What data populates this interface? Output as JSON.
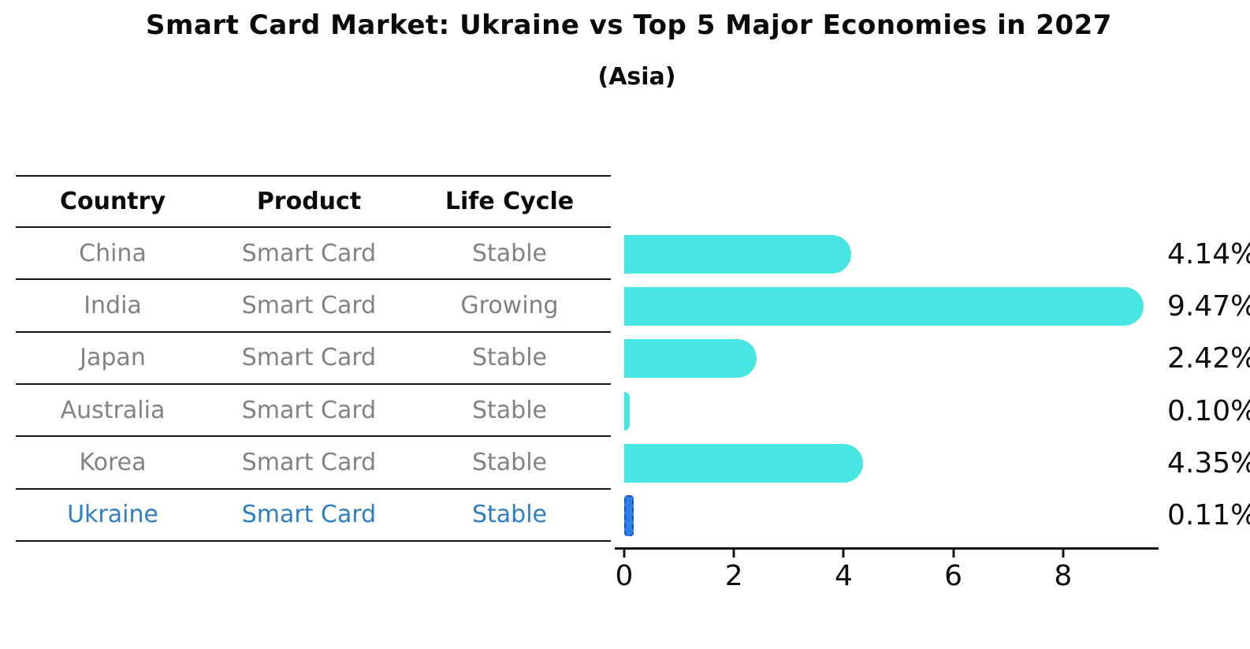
{
  "title": "Smart Card Market: Ukraine vs Top 5 Major Economies in 2027",
  "subtitle": "(Asia)",
  "table": {
    "headers": [
      "Country",
      "Product",
      "Life Cycle"
    ],
    "rows": [
      {
        "country": "China",
        "product": "Smart Card",
        "life_cycle": "Stable",
        "highlight": false
      },
      {
        "country": "India",
        "product": "Smart Card",
        "life_cycle": "Growing",
        "highlight": false
      },
      {
        "country": "Japan",
        "product": "Smart Card",
        "life_cycle": "Stable",
        "highlight": false
      },
      {
        "country": "Australia",
        "product": "Smart Card",
        "life_cycle": "Stable",
        "highlight": false
      },
      {
        "country": "Korea",
        "product": "Smart Card",
        "life_cycle": "Stable",
        "highlight": false
      },
      {
        "country": "Ukraine",
        "product": "Smart Card",
        "life_cycle": "Stable",
        "highlight": true
      }
    ]
  },
  "chart_data": {
    "type": "bar",
    "orientation": "horizontal",
    "title": "Smart Card Market: Ukraine vs Top 5 Major Economies in 2027",
    "subtitle": "(Asia)",
    "categories": [
      "China",
      "India",
      "Japan",
      "Australia",
      "Korea",
      "Ukraine"
    ],
    "values": [
      4.14,
      9.47,
      2.42,
      0.1,
      4.35,
      0.11
    ],
    "value_labels": [
      "4.14%",
      "9.47%",
      "2.42%",
      "0.10%",
      "4.35%",
      "0.11%"
    ],
    "xlabel": "",
    "ylabel": "",
    "xlim": [
      0,
      9.9
    ],
    "xticks": [
      0,
      2,
      4,
      6,
      8
    ],
    "xtick_labels": [
      "0",
      "2",
      "4",
      "6",
      "8"
    ],
    "grid": false,
    "legend": false,
    "highlight_index": 5,
    "colors": {
      "bar": "#48E6E3",
      "highlight_bar": "#2E7FE8",
      "highlight_bar_border": "#1C4FC4",
      "highlight_text": "#2e7fc1",
      "text": "#0a0a0a",
      "muted_text": "#828282"
    }
  }
}
